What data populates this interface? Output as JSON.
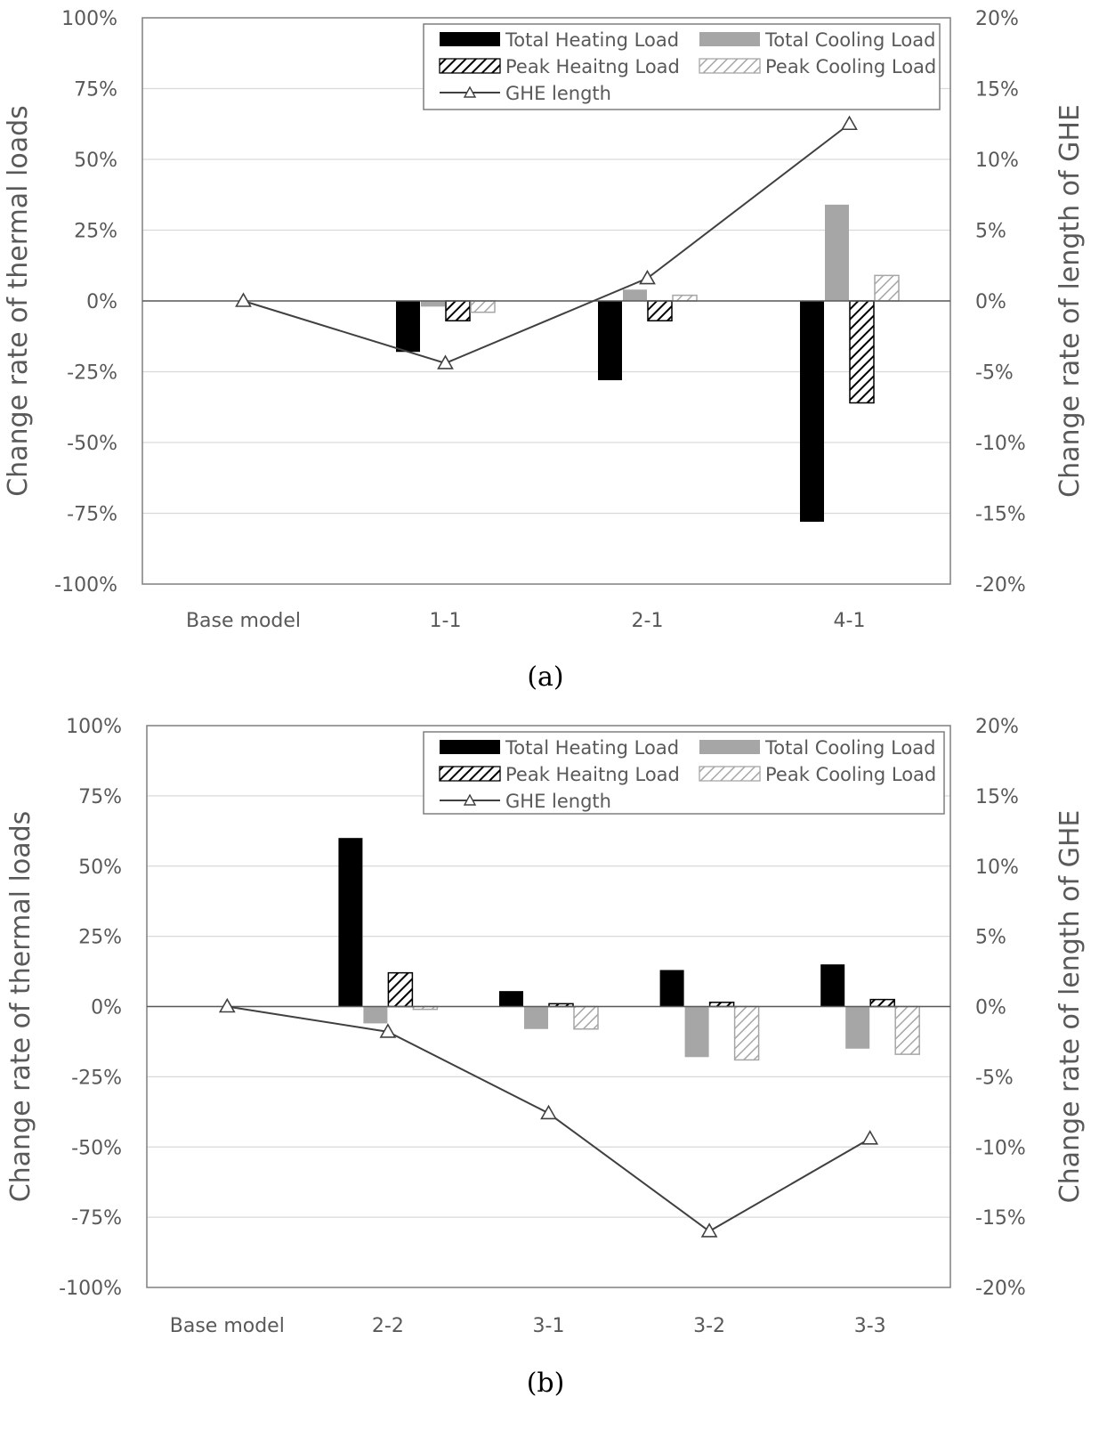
{
  "colors": {
    "total_heating": "#000000",
    "total_cooling": "#a6a6a6",
    "peak_heating_stroke": "#000000",
    "peak_cooling_stroke": "#a6a6a6",
    "ghe_line": "#404040",
    "axis_text": "#595959",
    "gridline": "#d9d9d9",
    "frame": "#7f7f7f"
  },
  "chart_data": [
    {
      "type": "bar",
      "caption": "(a)",
      "categories": [
        "Base model",
        "1-1",
        "2-1",
        "4-1"
      ],
      "ylabel": "Change rate of thermal loads",
      "y2label": "Change rate of length of GHE",
      "ylim": [
        -100,
        100
      ],
      "y2lim": [
        -20,
        20
      ],
      "yticks": [
        "100%",
        "75%",
        "50%",
        "25%",
        "0%",
        "-25%",
        "-50%",
        "-75%",
        "-100%"
      ],
      "y2ticks": [
        "20%",
        "15%",
        "10%",
        "5%",
        "0%",
        "-5%",
        "-10%",
        "-15%",
        "-20%"
      ],
      "grid": true,
      "legend_position": "top-right",
      "series": [
        {
          "name": "Total Heating Load",
          "style": "solid-black",
          "axis": "left",
          "values": [
            null,
            -18,
            -28,
            -78
          ]
        },
        {
          "name": "Total Cooling Load",
          "style": "solid-gray",
          "axis": "left",
          "values": [
            null,
            -2,
            4,
            34
          ]
        },
        {
          "name": "Peak Heaitng Load",
          "style": "hatch-black",
          "axis": "left",
          "values": [
            null,
            -7,
            -7,
            -36
          ]
        },
        {
          "name": "Peak Cooling Load",
          "style": "hatch-gray",
          "axis": "left",
          "values": [
            null,
            -4,
            2,
            9
          ]
        },
        {
          "name": "GHE length",
          "style": "line-triangle",
          "axis": "right",
          "values": [
            0,
            -4.4,
            1.6,
            12.5
          ]
        }
      ]
    },
    {
      "type": "bar",
      "caption": "(b)",
      "categories": [
        "Base model",
        "2-2",
        "3-1",
        "3-2",
        "3-3"
      ],
      "ylabel": "Change rate of thermal loads",
      "y2label": "Change rate of length of GHE",
      "ylim": [
        -100,
        100
      ],
      "y2lim": [
        -20,
        20
      ],
      "yticks": [
        "100%",
        "75%",
        "50%",
        "25%",
        "0%",
        "-25%",
        "-50%",
        "-75%",
        "-100%"
      ],
      "y2ticks": [
        "20%",
        "15%",
        "10%",
        "5%",
        "0%",
        "-5%",
        "-10%",
        "-15%",
        "-20%"
      ],
      "grid": true,
      "legend_position": "top-right",
      "series": [
        {
          "name": "Total Heating Load",
          "style": "solid-black",
          "axis": "left",
          "values": [
            null,
            60,
            5.5,
            13,
            15
          ]
        },
        {
          "name": "Total Cooling Load",
          "style": "solid-gray",
          "axis": "left",
          "values": [
            null,
            -6,
            -8,
            -18,
            -15
          ]
        },
        {
          "name": "Peak Heaitng Load",
          "style": "hatch-black",
          "axis": "left",
          "values": [
            null,
            12,
            1,
            1.5,
            2.5
          ]
        },
        {
          "name": "Peak Cooling Load",
          "style": "hatch-gray",
          "axis": "left",
          "values": [
            null,
            -1,
            -8,
            -19,
            -17
          ]
        },
        {
          "name": "GHE length",
          "style": "line-triangle",
          "axis": "right",
          "values": [
            0,
            -1.8,
            -7.6,
            -16,
            -9.4
          ]
        }
      ]
    }
  ]
}
